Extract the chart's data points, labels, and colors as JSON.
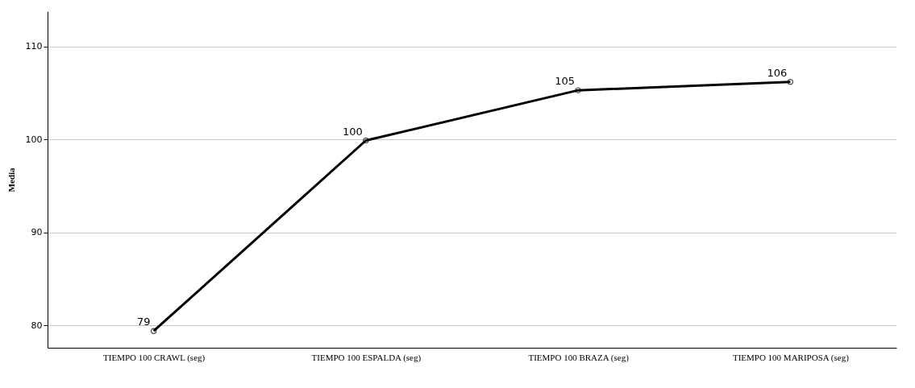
{
  "chart_data": {
    "type": "line",
    "ylabel": "Media",
    "categories": [
      "TIEMPO 100 CRAWL (seg)",
      "TIEMPO 100 ESPALDA (seg)",
      "TIEMPO 100 BRAZA (seg)",
      "TIEMPO 100 MARIPOSA (seg)"
    ],
    "series": [
      {
        "color": "#000000",
        "values": [
          79.4,
          99.9,
          105.3,
          106.2
        ],
        "value_labels": [
          "79",
          "100",
          "105",
          "106"
        ]
      }
    ],
    "ylim": [
      77.6,
      113.8
    ],
    "yticks": [
      80,
      90,
      100,
      110
    ],
    "grid": "y",
    "marker": "circle",
    "line_style": "solid"
  }
}
